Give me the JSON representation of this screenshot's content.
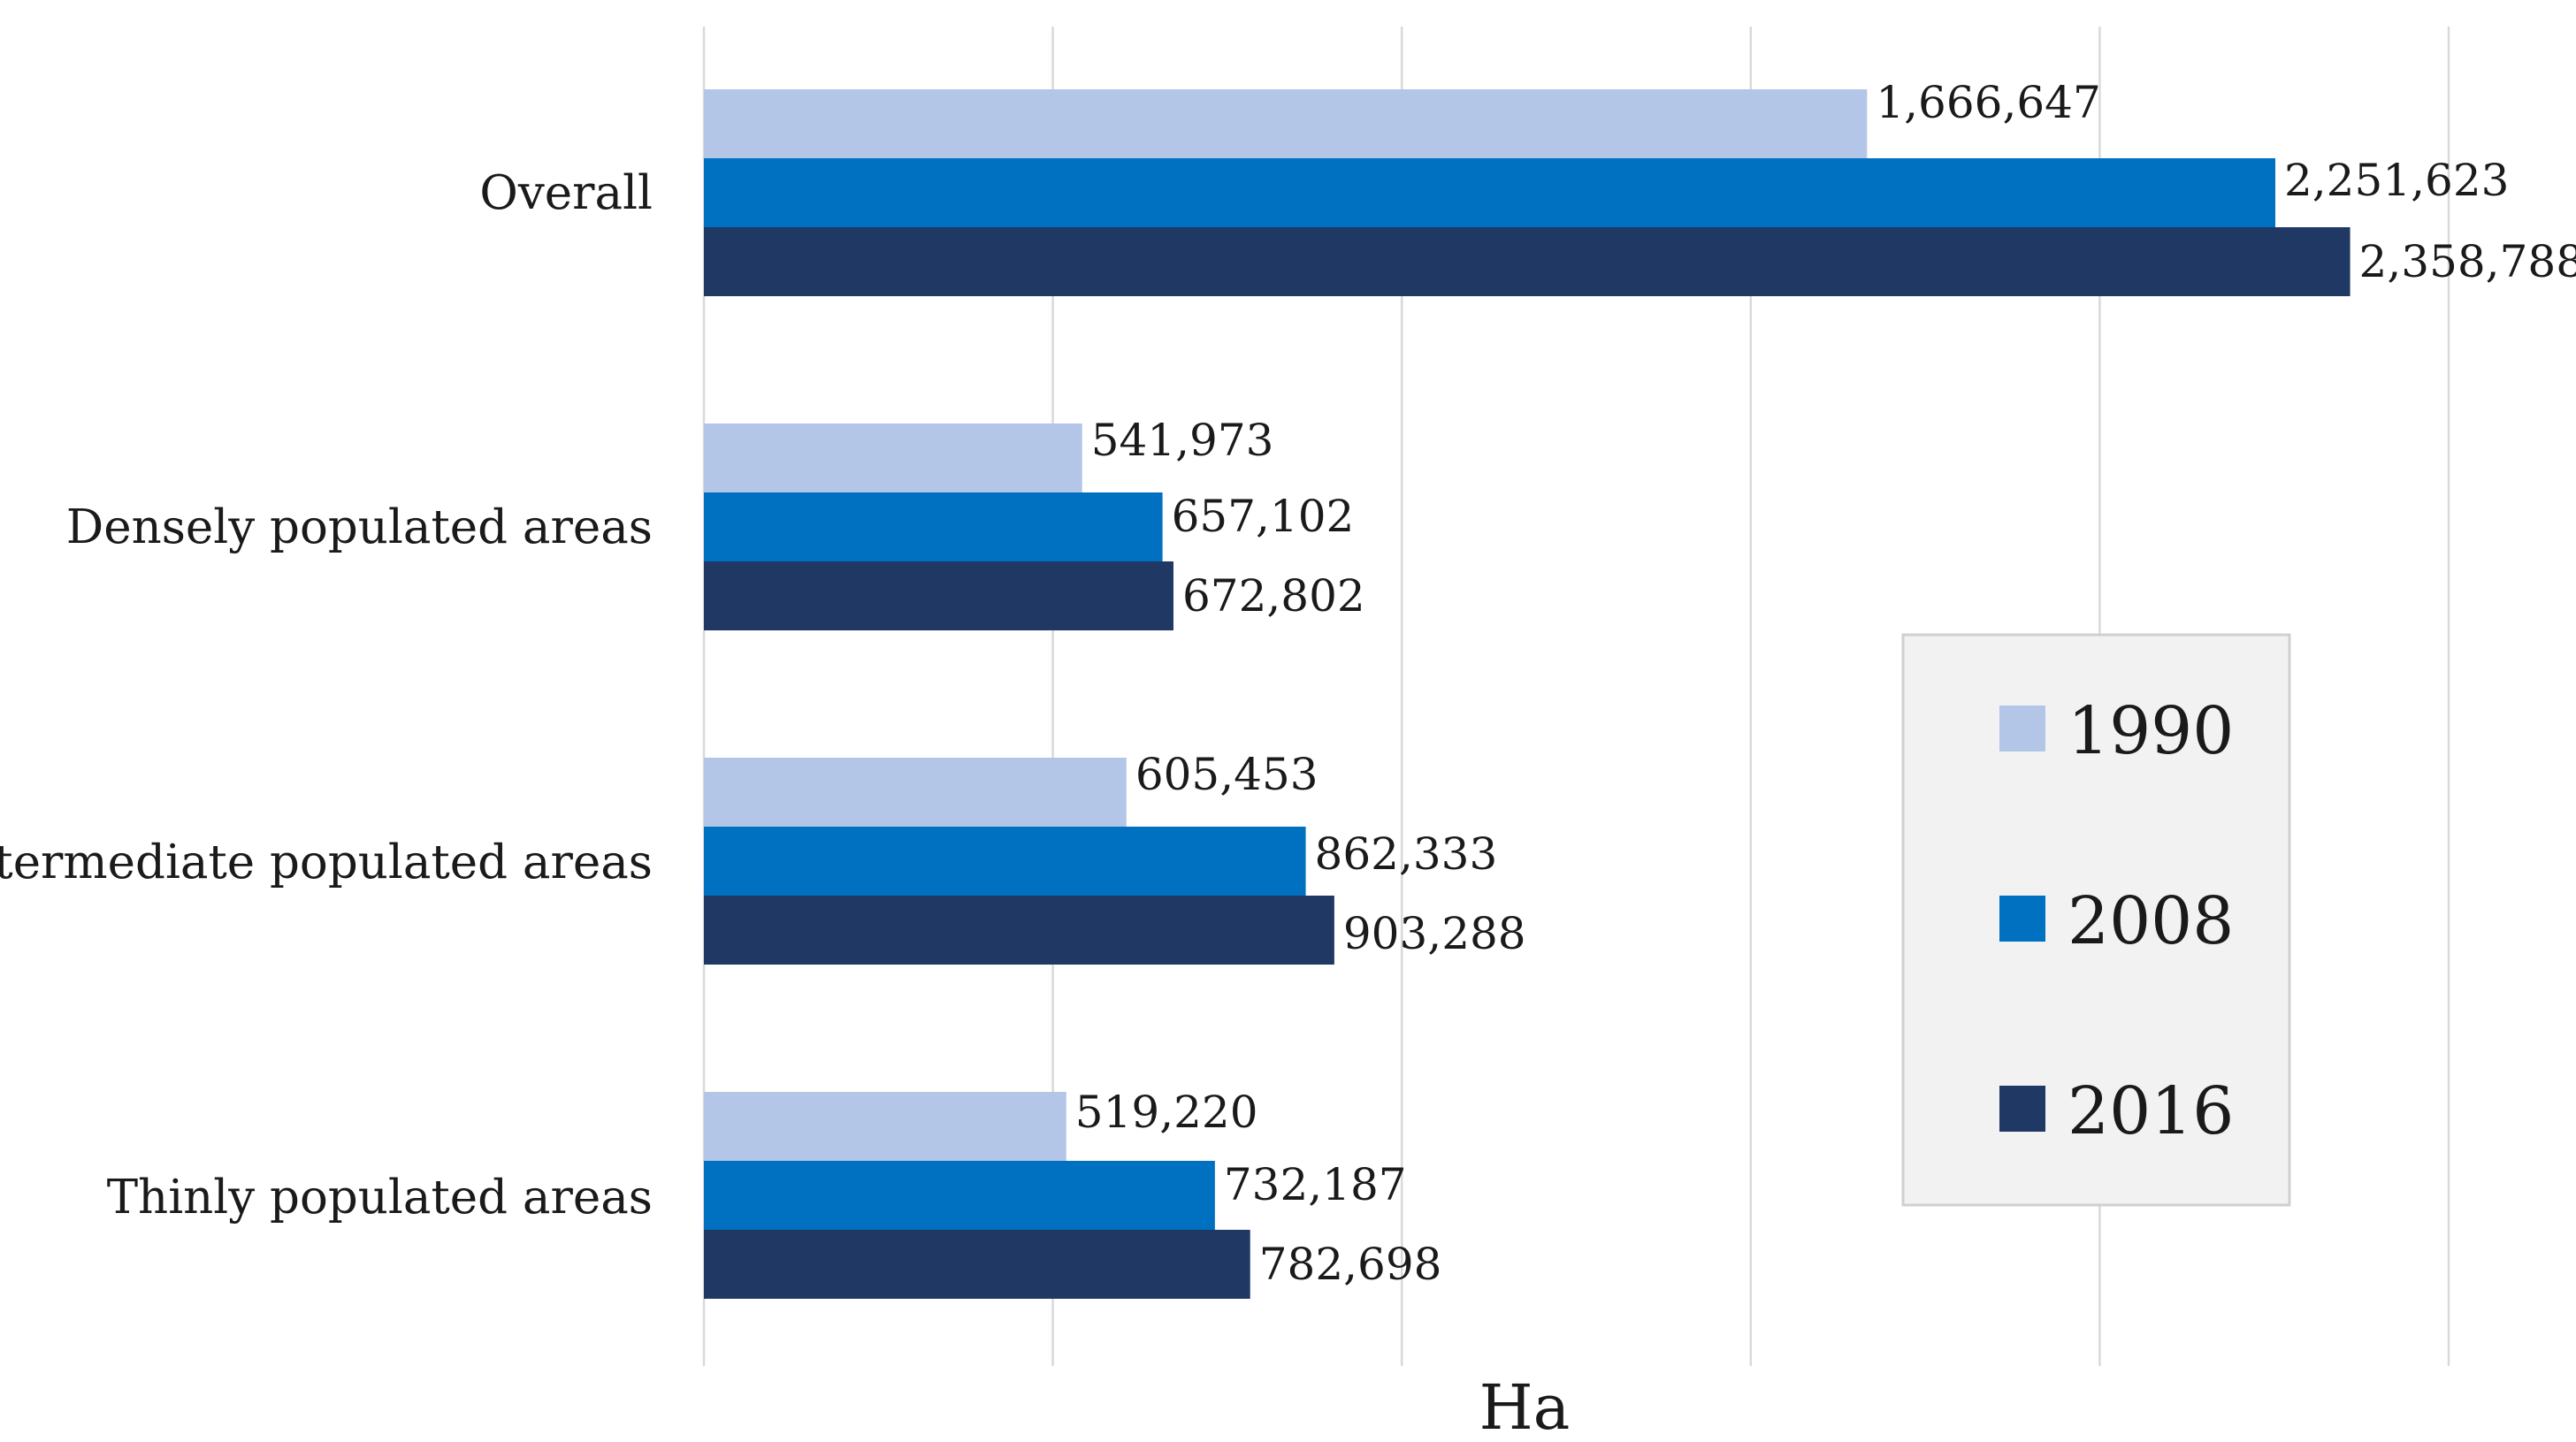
{
  "chart_data": {
    "type": "bar",
    "orientation": "horizontal",
    "title": "",
    "categories": [
      "Overall",
      "Densely populated areas",
      "Intermediate populated areas",
      "Thinly populated areas"
    ],
    "series": [
      {
        "name": "1990",
        "color": "#b4c6e7",
        "values": [
          1666647,
          541973,
          605453,
          519220
        ],
        "labels": [
          "1,666,647",
          "541,973",
          "605,453",
          "519,220"
        ]
      },
      {
        "name": "2008",
        "color": "#0070c0",
        "values": [
          2251623,
          657102,
          862333,
          732187
        ],
        "labels": [
          "2,251,623",
          "657,102",
          "862,333",
          "732,187"
        ]
      },
      {
        "name": "2016",
        "color": "#203864",
        "values": [
          2358788,
          672802,
          903288,
          782698
        ],
        "labels": [
          "2,358,788",
          "672,802",
          "903,288",
          "782,698"
        ]
      }
    ],
    "xlabel": "Ha",
    "ylabel": "",
    "xlim": [
      0,
      2500000
    ],
    "grid_step": 500000,
    "grid": true,
    "legend_position": "right",
    "legend_background": "#f2f2f2",
    "grid_color": "#d9d9d9"
  }
}
